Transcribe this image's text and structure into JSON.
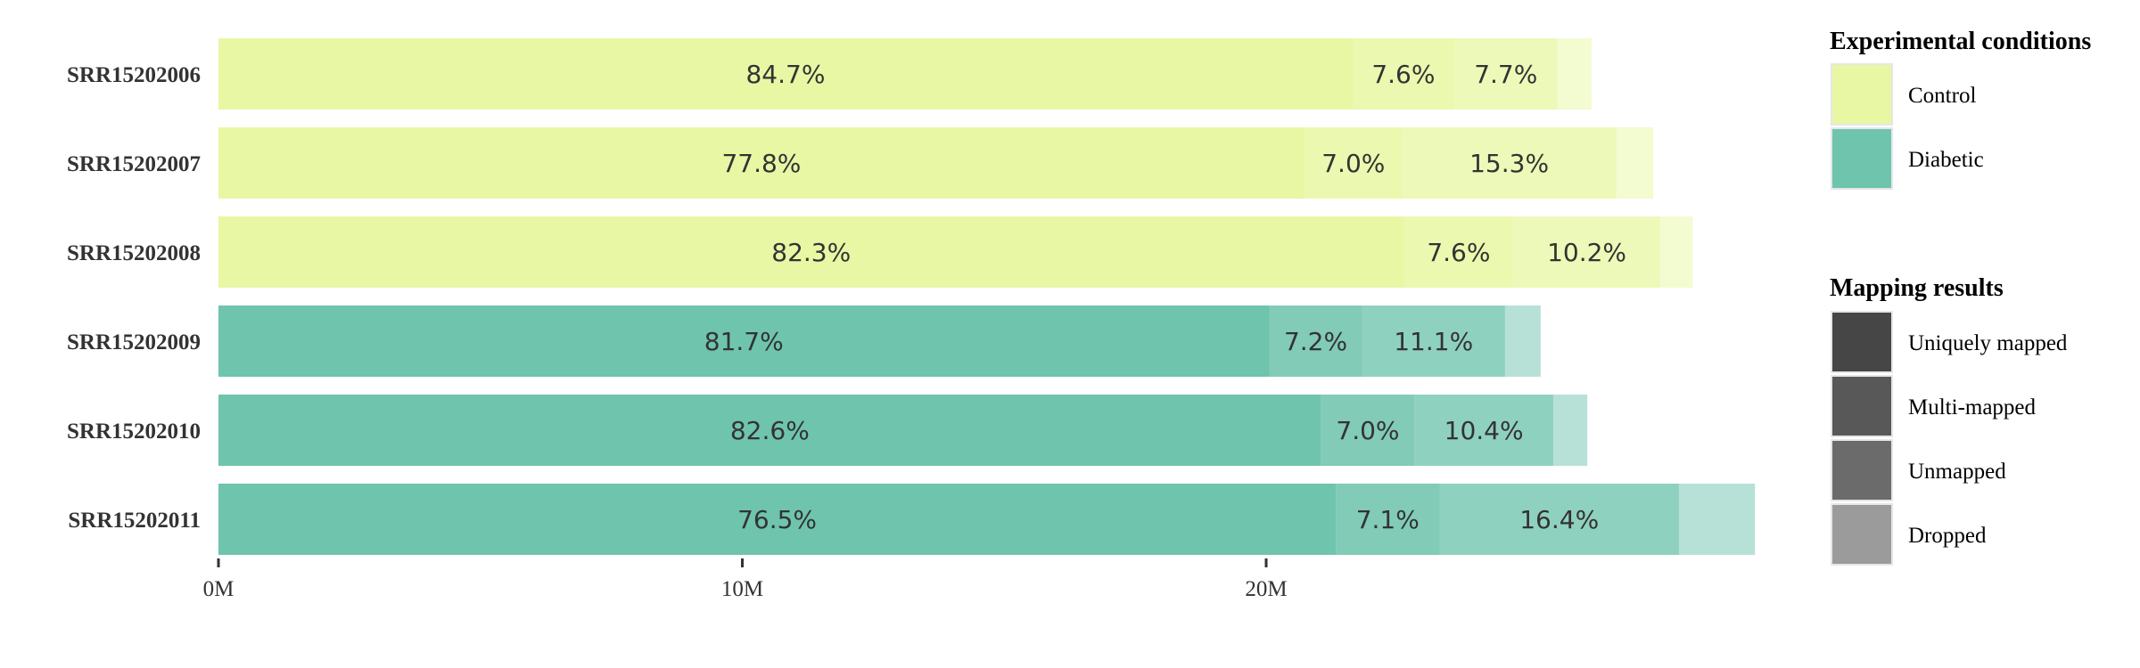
{
  "chart_data": {
    "type": "bar",
    "orientation": "horizontal",
    "stacked": true,
    "categories": [
      "SRR15202006",
      "SRR15202007",
      "SRR15202008",
      "SRR15202009",
      "SRR15202010",
      "SRR15202011"
    ],
    "conditions": [
      "Control",
      "Control",
      "Control",
      "Diabetic",
      "Diabetic",
      "Diabetic"
    ],
    "series": [
      {
        "name": "Uniquely mapped",
        "values": [
          21.65,
          20.73,
          22.63,
          20.06,
          21.05,
          21.33
        ],
        "labels": [
          "84.7%",
          "77.8%",
          "82.3%",
          "81.7%",
          "82.6%",
          "76.5%"
        ]
      },
      {
        "name": "Multi-mapped",
        "values": [
          1.94,
          1.87,
          2.09,
          1.77,
          1.78,
          1.98
        ],
        "labels": [
          "7.6%",
          "7.0%",
          "7.6%",
          "7.2%",
          "7.0%",
          "7.1%"
        ]
      },
      {
        "name": "Unmapped",
        "values": [
          1.97,
          4.08,
          2.8,
          2.73,
          2.65,
          4.57
        ],
        "labels": [
          "7.7%",
          "15.3%",
          "10.2%",
          "11.1%",
          "10.4%",
          "16.4%"
        ]
      },
      {
        "name": "Dropped",
        "values": [
          0.65,
          0.71,
          0.62,
          0.68,
          0.65,
          1.45
        ],
        "labels": [
          "",
          "",
          "",
          "",
          "",
          ""
        ]
      }
    ],
    "x_ticks": [
      "0M",
      "10M",
      "20M"
    ],
    "x_tick_values": [
      0,
      10,
      20
    ],
    "xlim": [
      0,
      29.4
    ],
    "grid": false,
    "legend_placement": "right",
    "legends": [
      {
        "title": "Experimental conditions",
        "items": [
          {
            "label": "Control",
            "color": "#e8f7a4"
          },
          {
            "label": "Diabetic",
            "color": "#6fc4ad"
          }
        ]
      },
      {
        "title": "Mapping results",
        "items": [
          {
            "label": "Uniquely mapped",
            "color": "#464646"
          },
          {
            "label": "Multi-mapped",
            "color": "#585858"
          },
          {
            "label": "Unmapped",
            "color": "#6b6b6b"
          },
          {
            "label": "Dropped",
            "color": "#9b9b9b"
          }
        ]
      }
    ],
    "condition_colors": {
      "Control": "#e8f7a4",
      "Diabetic": "#6fc4ad"
    },
    "segment_opacity": [
      1.0,
      0.88,
      0.78,
      0.5
    ]
  }
}
